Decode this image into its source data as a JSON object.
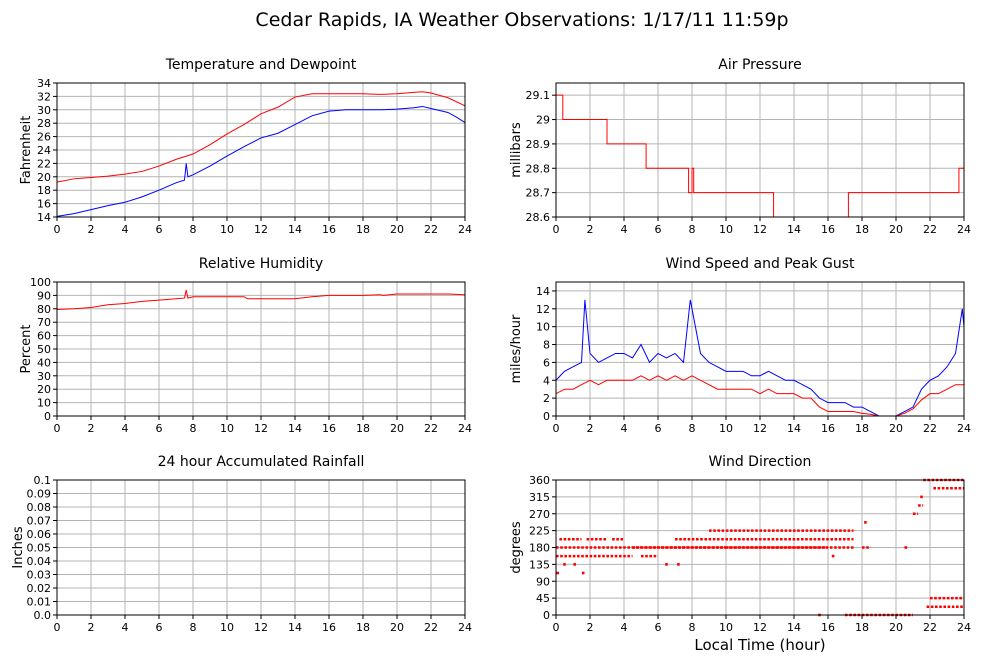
{
  "page_title": "Cedar Rapids, IA Weather Observations: 1/17/11 11:59p",
  "shared_xlabel": "Local Time (hour)",
  "chart_data": [
    {
      "id": "temp",
      "type": "line",
      "title": "Temperature and Dewpoint",
      "ylabel": "Fahrenheit",
      "xlabel": "",
      "xlim": [
        0,
        24
      ],
      "ylim": [
        14,
        34
      ],
      "xticks": [
        0,
        2,
        4,
        6,
        8,
        10,
        12,
        14,
        16,
        18,
        20,
        22,
        24
      ],
      "yticks": [
        14,
        16,
        18,
        20,
        22,
        24,
        26,
        28,
        30,
        32,
        34
      ],
      "grid": true,
      "series": [
        {
          "color": "#ff0000",
          "x": [
            0,
            1,
            2,
            3,
            4,
            5,
            6,
            7,
            8,
            9,
            10,
            11,
            12,
            13,
            14,
            15,
            16,
            17,
            18,
            19,
            20,
            21,
            21.5,
            22,
            23,
            24
          ],
          "y": [
            19.2,
            19.7,
            19.9,
            20.1,
            20.4,
            20.8,
            21.6,
            22.6,
            23.4,
            24.8,
            26.4,
            27.8,
            29.4,
            30.4,
            31.9,
            32.4,
            32.4,
            32.4,
            32.4,
            32.3,
            32.4,
            32.6,
            32.7,
            32.5,
            31.8,
            30.6
          ]
        },
        {
          "color": "#0000ff",
          "x": [
            0,
            1,
            2,
            3,
            4,
            5,
            6,
            7,
            7.5,
            7.6,
            7.7,
            8,
            9,
            10,
            11,
            12,
            13,
            14,
            15,
            16,
            17,
            18,
            19,
            20,
            21,
            21.5,
            22,
            23,
            23.5,
            24
          ],
          "y": [
            14.1,
            14.5,
            15.1,
            15.7,
            16.2,
            17.0,
            18.0,
            19.1,
            19.5,
            22.0,
            20.0,
            20.3,
            21.6,
            23.1,
            24.5,
            25.8,
            26.5,
            27.8,
            29.1,
            29.8,
            30.0,
            30.0,
            30.0,
            30.1,
            30.3,
            30.5,
            30.2,
            29.6,
            28.9,
            28.1
          ]
        }
      ]
    },
    {
      "id": "pressure",
      "type": "line",
      "title": "Air Pressure",
      "ylabel": "millibars",
      "xlabel": "",
      "xlim": [
        0,
        24
      ],
      "ylim": [
        28.6,
        29.15
      ],
      "xticks": [
        0,
        2,
        4,
        6,
        8,
        10,
        12,
        14,
        16,
        18,
        20,
        22,
        24
      ],
      "yticks": [
        28.6,
        28.7,
        28.8,
        28.9,
        29.0,
        29.1
      ],
      "grid": true,
      "series": [
        {
          "color": "#ff0000",
          "step": true,
          "x": [
            0,
            0.4,
            3,
            5.3,
            7.8,
            8.0,
            8.1,
            8.2,
            12.8,
            17.2,
            23.7,
            24
          ],
          "y": [
            29.1,
            29.0,
            28.9,
            28.8,
            28.7,
            28.8,
            28.7,
            28.7,
            28.6,
            28.7,
            28.8,
            28.8
          ]
        }
      ]
    },
    {
      "id": "humidity",
      "type": "line",
      "title": "Relative Humidity",
      "ylabel": "Percent",
      "xlabel": "",
      "xlim": [
        0,
        24
      ],
      "ylim": [
        0,
        100
      ],
      "xticks": [
        0,
        2,
        4,
        6,
        8,
        10,
        12,
        14,
        16,
        18,
        20,
        22,
        24
      ],
      "yticks": [
        0,
        10,
        20,
        30,
        40,
        50,
        60,
        70,
        80,
        90,
        100
      ],
      "grid": true,
      "series": [
        {
          "color": "#ff0000",
          "x": [
            0,
            1,
            2,
            3,
            4,
            5,
            6,
            7,
            7.5,
            7.6,
            7.7,
            8,
            9,
            10,
            11,
            11.2,
            12,
            13,
            14,
            15,
            16,
            17,
            18,
            19,
            19.2,
            20,
            21,
            22,
            23,
            24
          ],
          "y": [
            79.5,
            80,
            81,
            83,
            84,
            85.5,
            86.5,
            87.5,
            88,
            94,
            88,
            89,
            89,
            89,
            89,
            87.5,
            87.5,
            87.5,
            87.5,
            89,
            90,
            90,
            90,
            90.5,
            90,
            91,
            91,
            91,
            91,
            90.5
          ]
        }
      ]
    },
    {
      "id": "wind",
      "type": "line",
      "title": "Wind Speed and Peak Gust",
      "ylabel": "miles/hour",
      "xlabel": "",
      "xlim": [
        0,
        24
      ],
      "ylim": [
        0,
        15
      ],
      "xticks": [
        0,
        2,
        4,
        6,
        8,
        10,
        12,
        14,
        16,
        18,
        20,
        22,
        24
      ],
      "yticks": [
        0,
        2,
        4,
        6,
        8,
        10,
        12,
        14
      ],
      "grid": true,
      "series": [
        {
          "color": "#0000ff",
          "x": [
            0,
            0.5,
            1,
            1.5,
            1.7,
            2,
            2.5,
            3,
            3.5,
            4,
            4.5,
            5,
            5.5,
            6,
            6.5,
            7,
            7.5,
            7.9,
            8.5,
            9,
            9.5,
            10,
            10.5,
            11,
            11.5,
            12,
            12.5,
            13,
            13.5,
            14,
            14.5,
            15,
            15.5,
            16,
            16.5,
            17,
            17.5,
            18,
            18.5,
            19,
            20,
            20.5,
            21,
            21.5,
            22,
            22.5,
            23,
            23.5,
            23.9,
            24
          ],
          "y": [
            4,
            5,
            5.5,
            6,
            13,
            7,
            6,
            6.5,
            7,
            7,
            6.5,
            8,
            6,
            7,
            6.5,
            7,
            6,
            13,
            7,
            6,
            5.5,
            5,
            5,
            5,
            4.5,
            4.5,
            5,
            4.5,
            4,
            4,
            3.5,
            3,
            2,
            1.5,
            1.5,
            1.5,
            1,
            1,
            0.5,
            0,
            0,
            0.5,
            1,
            3,
            4,
            4.5,
            5.5,
            7,
            12,
            10
          ]
        },
        {
          "color": "#ff0000",
          "x": [
            0,
            0.5,
            1,
            1.5,
            2,
            2.5,
            3,
            3.5,
            4,
            4.5,
            5,
            5.5,
            6,
            6.5,
            7,
            7.5,
            8,
            8.5,
            9,
            9.5,
            10,
            10.5,
            11,
            11.5,
            12,
            12.5,
            13,
            13.5,
            14,
            14.5,
            15,
            15.5,
            16,
            16.5,
            17,
            17.5,
            18,
            18.5,
            19,
            20,
            20.5,
            21,
            21.5,
            22,
            22.5,
            23,
            23.5,
            24
          ],
          "y": [
            2.5,
            3,
            3,
            3.5,
            4,
            3.5,
            4,
            4,
            4,
            4,
            4.5,
            4,
            4.5,
            4,
            4.5,
            4,
            4.5,
            4,
            3.5,
            3,
            3,
            3,
            3,
            3,
            2.5,
            3,
            2.5,
            2.5,
            2.5,
            2,
            2,
            1,
            0.5,
            0.5,
            0.5,
            0.5,
            0.3,
            0.2,
            0,
            0,
            0.3,
            0.8,
            1.8,
            2.5,
            2.5,
            3,
            3.5,
            3.5
          ]
        }
      ]
    },
    {
      "id": "rain",
      "type": "line",
      "title": "24 hour Accumulated Rainfall",
      "ylabel": "Inches",
      "xlabel": "",
      "xlim": [
        0,
        24
      ],
      "ylim": [
        0,
        0.1
      ],
      "xticks": [
        0,
        2,
        4,
        6,
        8,
        10,
        12,
        14,
        16,
        18,
        20,
        22,
        24
      ],
      "yticks": [
        0.0,
        0.01,
        0.02,
        0.03,
        0.04,
        0.05,
        0.06,
        0.07,
        0.08,
        0.09,
        0.1
      ],
      "ytick_labels": [
        "0.0",
        "0.01",
        "0.02",
        "0.03",
        "0.04",
        "0.05",
        "0.06",
        "0.07",
        "0.08",
        "0.09",
        "0.1"
      ],
      "grid": true,
      "series": [
        {
          "color": "#ff0000",
          "x": [
            0,
            24
          ],
          "y": [
            0,
            0
          ]
        }
      ]
    },
    {
      "id": "direction",
      "type": "scatter",
      "title": "Wind Direction",
      "ylabel": "degrees",
      "xlabel": "Local Time (hour)",
      "xlim": [
        0,
        24
      ],
      "ylim": [
        0,
        360
      ],
      "xticks": [
        0,
        2,
        4,
        6,
        8,
        10,
        12,
        14,
        16,
        18,
        20,
        22,
        24
      ],
      "yticks": [
        0,
        45,
        90,
        135,
        180,
        225,
        270,
        315,
        360
      ],
      "grid": true,
      "series": [
        {
          "color": "#ff0000",
          "segments": [
            {
              "x": [
                0,
                4.5
              ],
              "y": 157
            },
            {
              "x": [
                0,
                10
              ],
              "y": 180
            },
            {
              "x": [
                0.2,
                1.5
              ],
              "y": 202
            },
            {
              "x": [
                1.8,
                3
              ],
              "y": 202
            },
            {
              "x": [
                3.3,
                4
              ],
              "y": 202
            },
            {
              "x": [
                5,
                6
              ],
              "y": 157
            },
            {
              "x": [
                4.5,
                17.5
              ],
              "y": 180
            },
            {
              "x": [
                7,
                17.5
              ],
              "y": 202
            },
            {
              "x": [
                9,
                17.5
              ],
              "y": 225
            },
            {
              "x": [
                10,
                16
              ],
              "y": 180
            },
            {
              "x": [
                18,
                18.5
              ],
              "y": 180
            },
            {
              "x": [
                20.5,
                20.7
              ],
              "y": 180
            },
            {
              "x": [
                17,
                21
              ],
              "y": 0
            },
            {
              "x": [
                21,
                21.3
              ],
              "y": 270
            },
            {
              "x": [
                21.3,
                21.6
              ],
              "y": 292
            },
            {
              "x": [
                21.6,
                24
              ],
              "y": 360
            },
            {
              "x": [
                22.2,
                24
              ],
              "y": 338
            },
            {
              "x": [
                21.8,
                24
              ],
              "y": 22
            },
            {
              "x": [
                22,
                24
              ],
              "y": 45
            }
          ],
          "points": [
            {
              "x": 0.1,
              "y": 112
            },
            {
              "x": 0.5,
              "y": 135
            },
            {
              "x": 1.1,
              "y": 135
            },
            {
              "x": 1.6,
              "y": 112
            },
            {
              "x": 6.5,
              "y": 135
            },
            {
              "x": 7.2,
              "y": 135
            },
            {
              "x": 15.5,
              "y": 0
            },
            {
              "x": 16.3,
              "y": 157
            },
            {
              "x": 18.2,
              "y": 247
            },
            {
              "x": 21.5,
              "y": 315
            }
          ]
        }
      ]
    }
  ]
}
